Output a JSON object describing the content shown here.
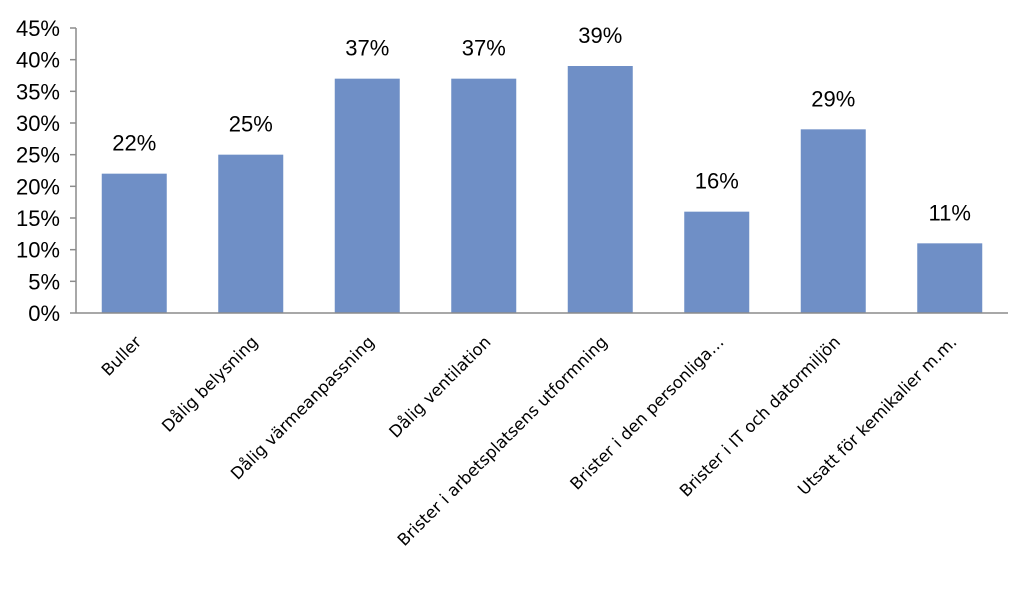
{
  "chart_data": {
    "type": "bar",
    "categories": [
      "Buller",
      "Dålig belysning",
      "Dålig värmeanpassning",
      "Dålig ventilation",
      "Brister i arbetsplatsens utformning",
      "Brister i den personliga…",
      "Brister i IT och datormiljön",
      "Utsatt för kemikalier m.m."
    ],
    "values": [
      22,
      25,
      37,
      37,
      39,
      16,
      29,
      11
    ],
    "data_labels": [
      "22%",
      "25%",
      "37%",
      "37%",
      "39%",
      "16%",
      "29%",
      "11%"
    ],
    "y_ticks": [
      "0%",
      "5%",
      "10%",
      "15%",
      "20%",
      "25%",
      "30%",
      "35%",
      "40%",
      "45%"
    ],
    "ylim": [
      0,
      45
    ],
    "y_tick_step": 5,
    "title": "",
    "xlabel": "",
    "ylabel": "",
    "grid": false,
    "legend": "none",
    "bar_color": "#6f8fc6",
    "axis_color": "#8c8c8c"
  }
}
